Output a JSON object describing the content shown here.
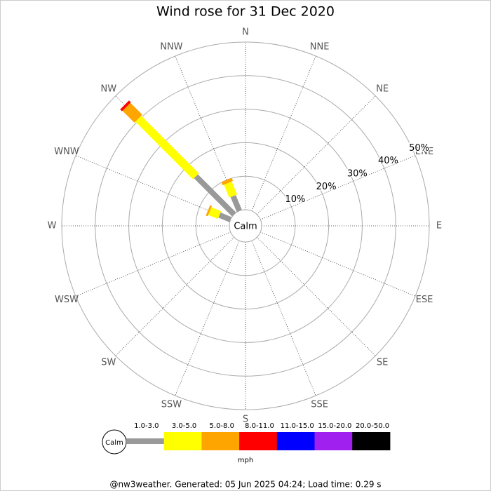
{
  "chart_data": {
    "type": "wind_rose",
    "title": "Wind rose for 31 Dec 2020",
    "calm_label": "Calm",
    "categories": [
      "N",
      "NNE",
      "NE",
      "ENE",
      "E",
      "ESE",
      "SE",
      "SSE",
      "S",
      "SSW",
      "SW",
      "WSW",
      "W",
      "WNW",
      "NW",
      "NNW"
    ],
    "series": [
      {
        "name": "1.0-3.0",
        "color": "#999999",
        "values": [
          0,
          0,
          0,
          0,
          0,
          0,
          0,
          0,
          0,
          0,
          0,
          0,
          0,
          3.6,
          16.1,
          4.8
        ]
      },
      {
        "name": "3.0-5.0",
        "color": "#ffff00",
        "values": [
          0,
          0,
          0,
          0,
          0,
          0,
          0,
          0,
          0,
          0,
          0,
          0,
          0,
          3.1,
          24.3,
          4.2
        ]
      },
      {
        "name": "5.0-8.0",
        "color": "#ffa500",
        "values": [
          0,
          0,
          0,
          0,
          0,
          0,
          0,
          0,
          0,
          0,
          0,
          0,
          0,
          0.6,
          5.0,
          1.0
        ]
      },
      {
        "name": "8.0-11.0",
        "color": "#ff0000",
        "values": [
          0,
          0,
          0,
          0,
          0,
          0,
          0,
          0,
          0,
          0,
          0,
          0,
          0,
          0,
          0.8,
          0
        ]
      },
      {
        "name": "11.0-15.0",
        "color": "#0000ff",
        "values": [
          0,
          0,
          0,
          0,
          0,
          0,
          0,
          0,
          0,
          0,
          0,
          0,
          0,
          0,
          0,
          0
        ]
      },
      {
        "name": "15.0-20.0",
        "color": "#a020f0",
        "values": [
          0,
          0,
          0,
          0,
          0,
          0,
          0,
          0,
          0,
          0,
          0,
          0,
          0,
          0,
          0,
          0
        ]
      },
      {
        "name": "20.0-50.0",
        "color": "#000000",
        "values": [
          0,
          0,
          0,
          0,
          0,
          0,
          0,
          0,
          0,
          0,
          0,
          0,
          0,
          0,
          0,
          0
        ]
      }
    ],
    "rlim": [
      0,
      50
    ],
    "rticks": [
      {
        "value": 10,
        "label": "10%"
      },
      {
        "value": 20,
        "label": "20%"
      },
      {
        "value": 30,
        "label": "30%"
      },
      {
        "value": 40,
        "label": "40%"
      },
      {
        "value": 50,
        "label": "50%"
      }
    ],
    "legend_unit": "mph",
    "footer": "@nw3weather. Generated: 05 Jun 2025 04:24; Load time: 0.29 s"
  }
}
